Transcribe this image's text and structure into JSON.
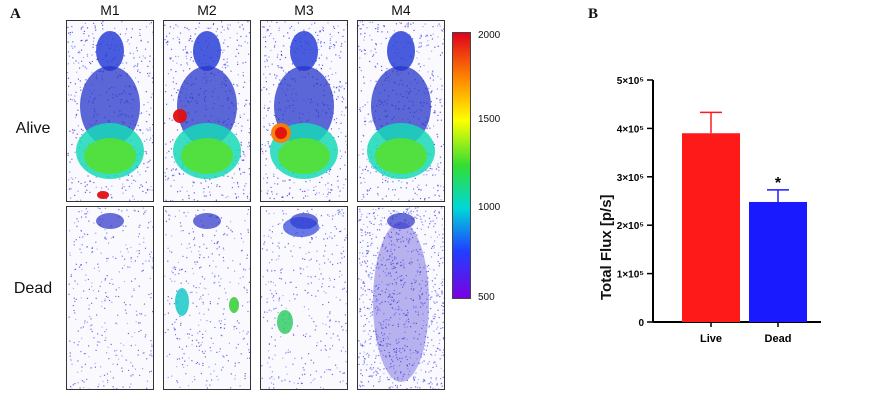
{
  "panel_a": {
    "letter": "A",
    "mice": [
      "M1",
      "M2",
      "M3",
      "M4"
    ],
    "rows": [
      "Alive",
      "Dead"
    ],
    "colorbar": {
      "ticks": [
        "2000",
        "1500",
        "1000",
        "500"
      ],
      "min": 500,
      "max": 2000
    }
  },
  "panel_b": {
    "letter": "B"
  },
  "chart_data": {
    "type": "bar",
    "categories": [
      "Live",
      "Dead"
    ],
    "values": [
      390000,
      248000
    ],
    "errors": [
      43000,
      25000
    ],
    "colors": [
      "#ff1a1a",
      "#1a1aff"
    ],
    "significance": [
      "",
      "*"
    ],
    "ylabel": "Total Flux [p/s]",
    "ylim": [
      0,
      500000
    ],
    "yticks": [
      0,
      100000,
      200000,
      300000,
      400000,
      500000
    ],
    "ytick_labels": [
      "0",
      "1×10⁵",
      "2×10⁵",
      "3×10⁵",
      "4×10⁵",
      "5×10⁵"
    ]
  }
}
